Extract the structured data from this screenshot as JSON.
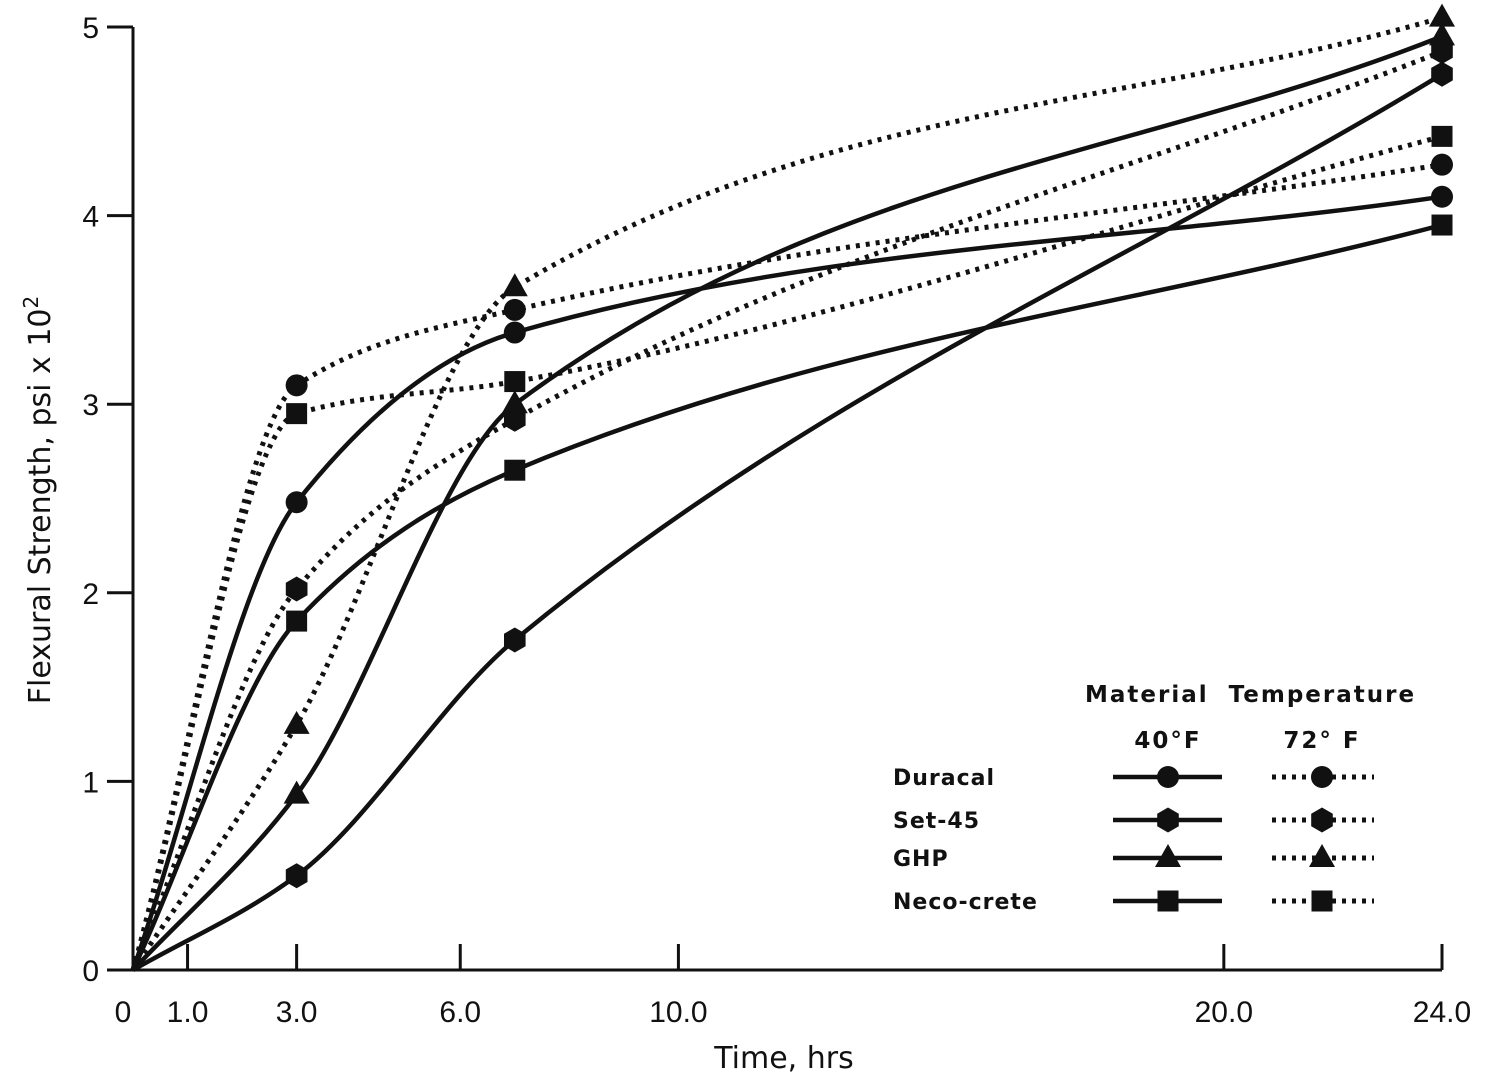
{
  "chart_data": {
    "type": "line",
    "title": "",
    "xlabel": "Time, hrs",
    "ylabel": "Flexural Strength, psi x 10",
    "ylabel_superscript": "2",
    "xlim": [
      0,
      24
    ],
    "ylim": [
      0,
      5
    ],
    "x_ticks": [
      {
        "value": 0,
        "label": "0"
      },
      {
        "value": 1,
        "label": "1.0"
      },
      {
        "value": 3,
        "label": "3.0"
      },
      {
        "value": 6,
        "label": "6.0"
      },
      {
        "value": 10,
        "label": "10.0"
      },
      {
        "value": 20,
        "label": "20.0"
      },
      {
        "value": 24,
        "label": "24.0"
      }
    ],
    "y_ticks": [
      {
        "value": 0,
        "label": "0"
      },
      {
        "value": 1,
        "label": "1"
      },
      {
        "value": 2,
        "label": "2"
      },
      {
        "value": 3,
        "label": "3"
      },
      {
        "value": 4,
        "label": "4"
      },
      {
        "value": 5,
        "label": "5"
      }
    ],
    "grid": false,
    "legend": {
      "placement": "bottom-right",
      "header": "Material  Temperature",
      "col_40": "40°F",
      "col_72": "72° F",
      "materials": [
        "Duracal",
        "Set-45",
        "GHP",
        "Neco-crete"
      ]
    },
    "series": [
      {
        "material": "Duracal",
        "temp": "40°F",
        "marker": "circle",
        "style": "solid",
        "x": [
          0,
          3,
          7,
          24
        ],
        "y": [
          0,
          2.48,
          3.38,
          4.1
        ]
      },
      {
        "material": "Duracal",
        "temp": "72°F",
        "marker": "circle",
        "style": "dotted",
        "x": [
          0,
          3,
          7,
          24
        ],
        "y": [
          0,
          3.1,
          3.5,
          4.27
        ]
      },
      {
        "material": "Set-45",
        "temp": "40°F",
        "marker": "hexagon",
        "style": "solid",
        "x": [
          0,
          3,
          7,
          24
        ],
        "y": [
          0,
          0.5,
          1.75,
          4.75
        ]
      },
      {
        "material": "Set-45",
        "temp": "72°F",
        "marker": "hexagon",
        "style": "dotted",
        "x": [
          0,
          3,
          7,
          24
        ],
        "y": [
          0,
          2.02,
          2.92,
          4.87
        ]
      },
      {
        "material": "GHP",
        "temp": "40°F",
        "marker": "triangle",
        "style": "solid",
        "x": [
          0,
          3,
          7,
          24
        ],
        "y": [
          0,
          0.93,
          3.0,
          4.95
        ]
      },
      {
        "material": "GHP",
        "temp": "72°F",
        "marker": "triangle",
        "style": "dotted",
        "x": [
          0,
          3,
          7,
          24
        ],
        "y": [
          0,
          1.3,
          3.62,
          5.05
        ]
      },
      {
        "material": "Neco-crete",
        "temp": "40°F",
        "marker": "square",
        "style": "solid",
        "x": [
          0,
          3,
          7,
          24
        ],
        "y": [
          0,
          1.85,
          2.65,
          3.95
        ]
      },
      {
        "material": "Neco-crete",
        "temp": "72°F",
        "marker": "square",
        "style": "dotted",
        "x": [
          0,
          3,
          7,
          24
        ],
        "y": [
          0,
          2.95,
          3.12,
          4.42
        ]
      }
    ]
  }
}
